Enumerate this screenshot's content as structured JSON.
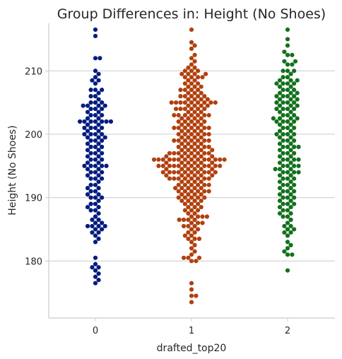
{
  "chart_data": {
    "type": "scatter",
    "subtype": "swarm",
    "title": "Group Differences in: Height (No Shoes)",
    "xlabel": "drafted_top20",
    "ylabel": "Height (No Shoes)",
    "categories": [
      "0",
      "1",
      "2"
    ],
    "ylim": [
      171,
      217.5
    ],
    "yticks": [
      180,
      190,
      200,
      210
    ],
    "grid": "horizontal",
    "legend": "none",
    "colors": [
      "#001c7f",
      "#b1400d",
      "#12711c"
    ],
    "series": [
      {
        "category": "0",
        "values": [
          216.5,
          215.5,
          212,
          212,
          210,
          209.5,
          209,
          208.5,
          208.5,
          208,
          207,
          207,
          207,
          206.5,
          206,
          206,
          205.5,
          205,
          205,
          205,
          204.5,
          204.5,
          204.5,
          204.5,
          204,
          204,
          204,
          203.5,
          203.5,
          203,
          203,
          203,
          202.5,
          202.5,
          202,
          202,
          202,
          202,
          202,
          202,
          202,
          201.5,
          201.5,
          201,
          201,
          201,
          201,
          200.5,
          200.5,
          200,
          200,
          200,
          200,
          199.5,
          199.5,
          199.5,
          199,
          199,
          199,
          198.5,
          198.5,
          198,
          198,
          198,
          197.5,
          197.5,
          197,
          197,
          197,
          196.5,
          196.5,
          196,
          196,
          196,
          195.5,
          195.5,
          195,
          195,
          195,
          195,
          195,
          194.5,
          194.5,
          194,
          194,
          194,
          193.5,
          193.5,
          193,
          193,
          193,
          192.5,
          192,
          192,
          191.5,
          191.5,
          191,
          191,
          190.5,
          190.5,
          190,
          190,
          190,
          189.5,
          189,
          189,
          188.5,
          188.5,
          188,
          188,
          187.5,
          187,
          186.5,
          186.5,
          186,
          186,
          185.5,
          185.5,
          185.5,
          185.5,
          185,
          185,
          184.5,
          184.5,
          184,
          183.5,
          183,
          180.5,
          179.5,
          179,
          179,
          178.5,
          178,
          177.5,
          177,
          176.5
        ]
      },
      {
        "category": "1",
        "values": [
          216.5,
          214.5,
          214,
          213.5,
          212.5,
          212,
          211.5,
          211,
          210.5,
          210.5,
          210,
          210,
          210,
          209.5,
          209.5,
          209.5,
          209.5,
          209,
          209,
          209,
          209,
          208.5,
          208.5,
          208,
          208,
          208,
          207.5,
          207.5,
          207.5,
          207,
          207,
          207,
          207,
          206.5,
          206.5,
          206.5,
          206,
          206,
          206,
          206,
          206,
          205.5,
          205.5,
          205.5,
          205.5,
          205,
          205,
          205,
          205,
          205,
          205,
          205,
          205,
          205,
          204.5,
          204.5,
          204.5,
          204.5,
          204,
          204,
          204,
          204,
          204,
          204,
          203.5,
          203.5,
          203.5,
          203,
          203,
          203,
          203,
          203,
          203,
          203,
          202.5,
          202.5,
          202.5,
          202.5,
          202,
          202,
          202,
          202,
          202,
          201.5,
          201.5,
          201.5,
          201.5,
          201,
          201,
          201,
          201,
          201,
          201,
          201,
          200.5,
          200.5,
          200.5,
          200.5,
          200,
          200,
          200,
          200,
          200,
          200,
          199.5,
          199.5,
          199.5,
          199.5,
          199,
          199,
          199,
          199,
          199,
          199,
          199,
          198.5,
          198.5,
          198.5,
          198.5,
          198,
          198,
          198,
          198,
          198,
          198,
          197.5,
          197.5,
          197.5,
          197.5,
          197.5,
          197,
          197,
          197,
          197,
          197,
          197,
          197,
          197,
          196.5,
          196.5,
          196.5,
          196.5,
          196.5,
          196.5,
          196,
          196,
          196,
          196,
          196,
          196,
          196,
          196,
          196,
          196,
          196,
          196,
          196,
          196,
          195.5,
          195.5,
          195.5,
          195.5,
          195.5,
          195.5,
          195,
          195,
          195,
          195,
          195,
          195,
          195,
          195,
          195,
          195,
          195,
          195,
          194.5,
          194.5,
          194.5,
          194.5,
          194.5,
          194.5,
          194,
          194,
          194,
          194,
          194,
          194,
          194,
          194,
          194,
          194,
          193.5,
          193.5,
          193.5,
          193.5,
          193.5,
          193.5,
          193,
          193,
          193,
          193,
          193,
          193,
          193,
          193,
          192.5,
          192.5,
          192.5,
          192.5,
          192,
          192,
          192,
          192,
          192,
          192,
          191.5,
          191.5,
          191.5,
          191.5,
          191.5,
          191,
          191,
          191,
          191,
          191,
          191,
          190.5,
          190.5,
          190.5,
          190.5,
          190,
          190,
          190,
          190,
          190,
          189.5,
          189.5,
          189.5,
          189.5,
          189,
          189,
          189,
          188.5,
          188.5,
          188.5,
          188,
          188,
          188,
          187.5,
          187.5,
          187,
          187,
          187,
          187,
          186.5,
          186.5,
          186.5,
          186.5,
          186,
          186,
          186,
          185.5,
          185.5,
          185.5,
          185,
          185,
          184.5,
          184.5,
          184,
          184,
          183.5,
          183.5,
          183.5,
          183,
          182.5,
          182,
          181.5,
          181,
          180.5,
          180.5,
          180.5,
          180,
          180,
          176.5,
          175.5,
          174.5,
          174.5,
          173.5
        ]
      },
      {
        "category": "2",
        "values": [
          216.5,
          215,
          214,
          213,
          212.5,
          212.5,
          211.5,
          211.5,
          211,
          211,
          210,
          210,
          210,
          209.5,
          209,
          209,
          208.5,
          208.5,
          208.5,
          208,
          208,
          208,
          208,
          207.5,
          207.5,
          207,
          207,
          207,
          206.5,
          206.5,
          206.5,
          206,
          206,
          206,
          206,
          205.5,
          205.5,
          205.5,
          205,
          205,
          205,
          205,
          204.5,
          204.5,
          204.5,
          204,
          204,
          204,
          204,
          203.5,
          203.5,
          203,
          203,
          203,
          202.5,
          202.5,
          202.5,
          202.5,
          202,
          202,
          202,
          202,
          201.5,
          201.5,
          201,
          201,
          201,
          200.5,
          200.5,
          200,
          200,
          200,
          200,
          199.5,
          199.5,
          199,
          199,
          199,
          198.5,
          198.5,
          198,
          198,
          198,
          198,
          197.5,
          197.5,
          197,
          197,
          197,
          196.5,
          196.5,
          196,
          196,
          196,
          196,
          195.5,
          195.5,
          195,
          195,
          195,
          195,
          194.5,
          194.5,
          194.5,
          194,
          194,
          194,
          194,
          193.5,
          193.5,
          193,
          193,
          193,
          192.5,
          192.5,
          192,
          192,
          192,
          191.5,
          191.5,
          191,
          191,
          191,
          190.5,
          190.5,
          190,
          190,
          190,
          189.5,
          189.5,
          189,
          189,
          189,
          188.5,
          188.5,
          188,
          188,
          187.5,
          187.5,
          187,
          187,
          186.5,
          186,
          185.5,
          185.5,
          185,
          185,
          184.5,
          184.5,
          184,
          183,
          182.5,
          182,
          181.5,
          181,
          181,
          178.5
        ]
      }
    ]
  }
}
